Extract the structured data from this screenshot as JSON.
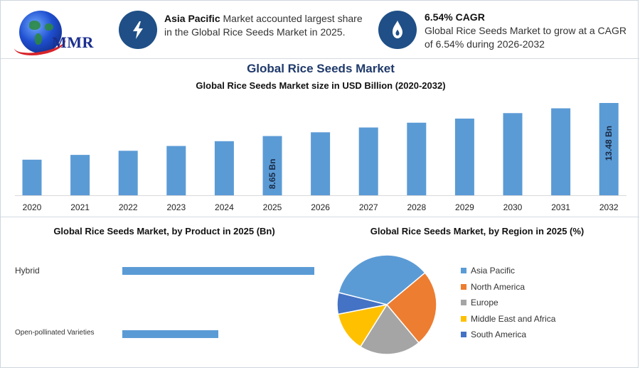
{
  "logo": {
    "text": "MMR"
  },
  "info_left": {
    "bold": "Asia Pacific",
    "text": " Market accounted largest share in the Global Rice Seeds Market in 2025.",
    "icon": "lightning-icon"
  },
  "info_right": {
    "title": "6.54% CAGR",
    "text": "Global Rice Seeds Market to grow at a CAGR of 6.54% during 2026-2032",
    "icon": "flame-icon"
  },
  "main_title": "Global Rice Seeds Market",
  "colors": {
    "bar": "#5b9bd5",
    "accent": "#1f4f86",
    "title": "#1f3a6b"
  },
  "chart_data": [
    {
      "type": "bar",
      "title": "Global Rice Seeds Market size in USD Billion (2020-2032)",
      "categories": [
        "2020",
        "2021",
        "2022",
        "2023",
        "2024",
        "2025",
        "2026",
        "2027",
        "2028",
        "2029",
        "2030",
        "2031",
        "2032"
      ],
      "values": [
        5.2,
        5.9,
        6.5,
        7.2,
        7.9,
        8.65,
        9.2,
        9.9,
        10.6,
        11.2,
        12.0,
        12.7,
        13.48
      ],
      "data_labels": [
        {
          "category": "2025",
          "text": "8.65 Bn"
        },
        {
          "category": "2032",
          "text": "13.48 Bn"
        }
      ],
      "ylim": [
        0,
        13.48
      ],
      "grid": false
    },
    {
      "type": "bar",
      "orientation": "horizontal",
      "title": "Global Rice Seeds Market, by Product in 2025 (Bn)",
      "categories": [
        "Hybrid",
        "Open-pollinated Varieties"
      ],
      "values": [
        5.6,
        2.8
      ]
    },
    {
      "type": "pie",
      "title": "Global Rice Seeds Market, by Region in 2025 (%)",
      "categories": [
        "Asia Pacific",
        "North America",
        "Europe",
        "Middle East and Africa",
        "South America"
      ],
      "values": [
        35,
        25,
        20,
        13,
        7
      ],
      "colors": [
        "#5b9bd5",
        "#ed7d31",
        "#a5a5a5",
        "#ffc000",
        "#4472c4"
      ],
      "legend": "right"
    }
  ]
}
